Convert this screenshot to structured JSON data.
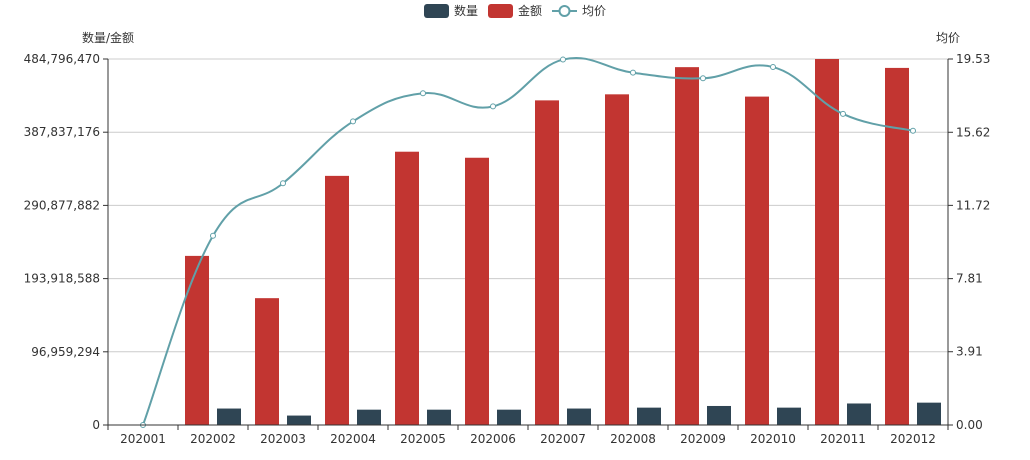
{
  "chart_data": {
    "type": "bar+line",
    "categories": [
      "202001",
      "202002",
      "202003",
      "202004",
      "202005",
      "202006",
      "202007",
      "202008",
      "202009",
      "202010",
      "202011",
      "202012"
    ],
    "legend": [
      {
        "name": "数量",
        "color": "#2f4554",
        "kind": "bar"
      },
      {
        "name": "金额",
        "color": "#c23531",
        "kind": "bar"
      },
      {
        "name": "均价",
        "color": "#61a0a8",
        "kind": "line"
      }
    ],
    "y_left": {
      "name": "数量/金额",
      "min": 0,
      "max": 484796470,
      "ticks": [
        0,
        96959294,
        193918588,
        290877882,
        387837176,
        484796470
      ],
      "tick_labels": [
        "0",
        "96,959,294",
        "193,918,588",
        "290,877,882",
        "387,837,176",
        "484,796,470"
      ]
    },
    "y_right": {
      "name": "均价",
      "min": 0,
      "max": 19.53,
      "ticks": [
        0,
        3.91,
        7.81,
        11.72,
        15.62,
        19.53
      ],
      "tick_labels": [
        "0.00",
        "3.91",
        "7.81",
        "11.72",
        "15.62",
        "19.53"
      ]
    },
    "series": [
      {
        "name": "数量",
        "axis": "left",
        "values": [
          0,
          21800000,
          12500000,
          20300000,
          20300000,
          20300000,
          21800000,
          23000000,
          25200000,
          23000000,
          28500000,
          29600000
        ]
      },
      {
        "name": "金额",
        "axis": "left",
        "values": [
          0,
          224000000,
          168000000,
          330000000,
          362000000,
          354000000,
          430000000,
          438000000,
          474000000,
          435000000,
          484796470,
          473000000
        ]
      },
      {
        "name": "均价",
        "axis": "right",
        "values": [
          0.0,
          10.1,
          12.9,
          16.2,
          17.7,
          17.0,
          19.5,
          18.8,
          18.5,
          19.1,
          16.6,
          15.7
        ]
      }
    ],
    "grid": true,
    "legend_position": "top-center"
  }
}
